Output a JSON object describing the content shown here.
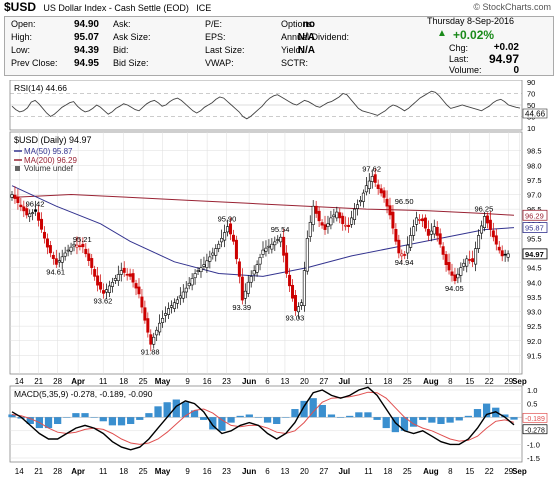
{
  "header": {
    "symbol": "$USD",
    "name": "US Dollar Index - Cash Settle (EOD)",
    "exchange": "ICE",
    "watermark": "© StockCharts.com",
    "date": "Thursday 8-Sep-2016",
    "change_pct": "+0.02%",
    "change_arrow": "▲",
    "quote": {
      "open_label": "Open:",
      "open": "94.90",
      "high_label": "High:",
      "high": "95.07",
      "low_label": "Low:",
      "low": "94.39",
      "prev_label": "Prev Close:",
      "prev": "94.95",
      "ask_label": "Ask:",
      "ask": "",
      "asksize_label": "Ask Size:",
      "asksize": "",
      "bid_label": "Bid:",
      "bid": "",
      "bidsize_label": "Bid Size:",
      "bidsize": "",
      "pe_label": "P/E:",
      "pe": "",
      "eps_label": "EPS:",
      "eps": "",
      "lastsize_label": "Last Size:",
      "lastsize": "",
      "vwap_label": "VWAP:",
      "vwap": "",
      "options_label": "Options:",
      "options": "no",
      "annualdiv_label": "Annual Dividend:",
      "annualdiv": "N/A",
      "yield_label": "Yield:",
      "yield": "N/A",
      "sctr_label": "SCTR:",
      "sctr": "",
      "chg_label": "Chg:",
      "chg": "+0.02",
      "last_label": "Last:",
      "last": "94.97",
      "volume_label": "Volume:",
      "volume": "0"
    }
  },
  "colors": {
    "up": "#1a8a1a",
    "candle_down": "#cc0000",
    "ma50": "#33338f",
    "ma200": "#992233",
    "macd": "#000000",
    "signal": "#e05050",
    "hist": "#3a8fcf",
    "grid": "#dddddd"
  },
  "chart_data": [
    {
      "type": "line",
      "title": "RSI(14) 44.66",
      "ylim": [
        10,
        90
      ],
      "yticks": [
        "90",
        "70",
        "50",
        "30",
        "10"
      ],
      "last_value": "44.66",
      "values": [
        48,
        42,
        38,
        40,
        45,
        55,
        58,
        52,
        44,
        36,
        30,
        34,
        40,
        46,
        50,
        54,
        56,
        48,
        42,
        38,
        40,
        44,
        50,
        46,
        40,
        34,
        38,
        44,
        48,
        52,
        50,
        46,
        42,
        40,
        46,
        52,
        56,
        58,
        54,
        48,
        50,
        56,
        60,
        62,
        58,
        52,
        46,
        40,
        36,
        40,
        46,
        50,
        54,
        60,
        64,
        62,
        56,
        50,
        44,
        38,
        30,
        26,
        30,
        36,
        42,
        48,
        56,
        62,
        66,
        68,
        64,
        60,
        56,
        52,
        50,
        54,
        58,
        56,
        52,
        48,
        46,
        50,
        54,
        56,
        60,
        64,
        70,
        68,
        60,
        52,
        44,
        40,
        38,
        36,
        34,
        32,
        36,
        40,
        46,
        50,
        48,
        44,
        40,
        44,
        50,
        56,
        62,
        66,
        70,
        74,
        72,
        66,
        58,
        50,
        44,
        46,
        48,
        50,
        48,
        46,
        44,
        42,
        40,
        44,
        48,
        54,
        58,
        60,
        56,
        50,
        48,
        46,
        44.66
      ]
    },
    {
      "type": "candlestick",
      "title": "$USD (Daily) 94.97",
      "ylim": [
        91,
        99
      ],
      "yticks": [
        "98.5",
        "98.0",
        "97.5",
        "97.0",
        "96.5",
        "96.0",
        "95.5",
        "95.0",
        "94.5",
        "94.0",
        "93.5",
        "93.0",
        "92.5",
        "92.0",
        "91.5"
      ],
      "legend": [
        "MA(50) 95.87",
        "MA(200) 96.29",
        "Volume undef"
      ],
      "price_labels": {
        "ma200": "96.29",
        "ma50": "95.87",
        "last": "94.97"
      },
      "annotations": [
        {
          "label": "96.42",
          "x": 8,
          "y": 96.42
        },
        {
          "label": "94.61",
          "x": 15,
          "y": 94.61
        },
        {
          "label": "95.21",
          "x": 24,
          "y": 95.21
        },
        {
          "label": "93.62",
          "x": 31,
          "y": 93.62
        },
        {
          "label": "91.88",
          "x": 47,
          "y": 91.88
        },
        {
          "label": "95.90",
          "x": 73,
          "y": 95.9
        },
        {
          "label": "93.39",
          "x": 78,
          "y": 93.39
        },
        {
          "label": "95.54",
          "x": 91,
          "y": 95.54
        },
        {
          "label": "93.03",
          "x": 96,
          "y": 93.03
        },
        {
          "label": "97.62",
          "x": 122,
          "y": 97.62
        },
        {
          "label": "96.50",
          "x": 133,
          "y": 96.5
        },
        {
          "label": "94.94",
          "x": 133,
          "y": 94.94
        },
        {
          "label": "94.05",
          "x": 150,
          "y": 94.05
        },
        {
          "label": "96.25",
          "x": 160,
          "y": 96.25
        }
      ],
      "ma50": [
        [
          0,
          97.3
        ],
        [
          15,
          96.6
        ],
        [
          30,
          96.0
        ],
        [
          40,
          95.4
        ],
        [
          55,
          94.7
        ],
        [
          70,
          94.3
        ],
        [
          85,
          94.2
        ],
        [
          100,
          94.5
        ],
        [
          115,
          94.9
        ],
        [
          130,
          95.2
        ],
        [
          145,
          95.5
        ],
        [
          160,
          95.8
        ],
        [
          170,
          95.87
        ]
      ],
      "ma200": [
        [
          0,
          96.9
        ],
        [
          20,
          97.0
        ],
        [
          40,
          96.9
        ],
        [
          60,
          96.8
        ],
        [
          80,
          96.7
        ],
        [
          100,
          96.6
        ],
        [
          120,
          96.5
        ],
        [
          140,
          96.45
        ],
        [
          160,
          96.35
        ],
        [
          170,
          96.29
        ]
      ],
      "close_path": [
        [
          0,
          97.0
        ],
        [
          5,
          96.3
        ],
        [
          8,
          96.42
        ],
        [
          12,
          95.2
        ],
        [
          15,
          94.61
        ],
        [
          18,
          95.0
        ],
        [
          21,
          95.3
        ],
        [
          24,
          95.21
        ],
        [
          27,
          94.5
        ],
        [
          29,
          93.9
        ],
        [
          31,
          93.62
        ],
        [
          34,
          94.0
        ],
        [
          37,
          94.4
        ],
        [
          40,
          94.2
        ],
        [
          43,
          93.6
        ],
        [
          45,
          92.7
        ],
        [
          47,
          91.88
        ],
        [
          50,
          92.6
        ],
        [
          53,
          93.1
        ],
        [
          56,
          93.4
        ],
        [
          59,
          93.8
        ],
        [
          62,
          94.3
        ],
        [
          65,
          94.6
        ],
        [
          68,
          95.0
        ],
        [
          70,
          95.3
        ],
        [
          73,
          95.9
        ],
        [
          75,
          95.4
        ],
        [
          77,
          94.2
        ],
        [
          78,
          93.39
        ],
        [
          80,
          94.0
        ],
        [
          83,
          94.6
        ],
        [
          85,
          95.1
        ],
        [
          88,
          95.3
        ],
        [
          91,
          95.54
        ],
        [
          93,
          94.3
        ],
        [
          96,
          93.03
        ],
        [
          98,
          93.3
        ],
        [
          100,
          95.5
        ],
        [
          102,
          96.6
        ],
        [
          104,
          96.1
        ],
        [
          106,
          95.8
        ],
        [
          108,
          96.2
        ],
        [
          110,
          96.4
        ],
        [
          112,
          96.0
        ],
        [
          114,
          95.9
        ],
        [
          116,
          96.5
        ],
        [
          118,
          96.8
        ],
        [
          120,
          97.3
        ],
        [
          122,
          97.62
        ],
        [
          124,
          97.2
        ],
        [
          126,
          96.9
        ],
        [
          128,
          96.3
        ],
        [
          130,
          95.4
        ],
        [
          131,
          95.0
        ],
        [
          133,
          94.94
        ],
        [
          135,
          95.6
        ],
        [
          137,
          96.2
        ],
        [
          139,
          96.1
        ],
        [
          141,
          95.6
        ],
        [
          143,
          95.9
        ],
        [
          145,
          95.3
        ],
        [
          147,
          94.6
        ],
        [
          150,
          94.05
        ],
        [
          152,
          94.5
        ],
        [
          154,
          94.8
        ],
        [
          156,
          94.7
        ],
        [
          158,
          95.6
        ],
        [
          160,
          96.25
        ],
        [
          162,
          95.8
        ],
        [
          164,
          95.3
        ],
        [
          166,
          94.9
        ],
        [
          168,
          94.97
        ]
      ]
    },
    {
      "type": "line",
      "title": "MACD(5,35,9) -0.278, -0.189, -0.090",
      "ylim": [
        -1.5,
        1.0
      ],
      "yticks": [
        "1.0",
        "0.5",
        "0.0",
        "-0.5",
        "-1.0",
        "-1.5"
      ],
      "price_labels": {
        "signal": "-0.189",
        "macd": "-0.278"
      },
      "series": [
        {
          "name": "MACD(5,35,9)",
          "values": [
            0.2,
            0.0,
            -0.3,
            -0.6,
            -0.8,
            -0.8,
            -0.6,
            -0.4,
            -0.3,
            -0.4,
            -0.6,
            -0.9,
            -1.1,
            -1.2,
            -1.1,
            -0.8,
            -0.4,
            0.0,
            0.4,
            0.6,
            0.5,
            0.2,
            -0.3,
            -0.6,
            -0.5,
            -0.3,
            -0.2,
            -0.3,
            -0.6,
            -0.8,
            -0.6,
            -0.2,
            0.4,
            0.9,
            1.0,
            0.8,
            0.7,
            0.8,
            1.0,
            1.1,
            0.8,
            0.3,
            -0.2,
            -0.5,
            -0.6,
            -0.5,
            -0.7,
            -0.9,
            -1.0,
            -1.0,
            -0.8,
            -0.4,
            0.1,
            0.2,
            0.0,
            -0.278
          ]
        },
        {
          "name": "Signal",
          "values": [
            0.1,
            0.05,
            -0.05,
            -0.2,
            -0.4,
            -0.55,
            -0.6,
            -0.55,
            -0.45,
            -0.4,
            -0.45,
            -0.6,
            -0.8,
            -0.95,
            -1.0,
            -0.95,
            -0.8,
            -0.55,
            -0.25,
            0.05,
            0.25,
            0.3,
            0.15,
            -0.1,
            -0.3,
            -0.35,
            -0.3,
            -0.3,
            -0.4,
            -0.55,
            -0.6,
            -0.5,
            -0.2,
            0.2,
            0.55,
            0.7,
            0.72,
            0.75,
            0.82,
            0.92,
            0.9,
            0.7,
            0.35,
            0.0,
            -0.25,
            -0.4,
            -0.5,
            -0.65,
            -0.8,
            -0.88,
            -0.85,
            -0.7,
            -0.4,
            -0.15,
            -0.1,
            -0.189
          ]
        },
        {
          "name": "Histogram",
          "values": [
            0.1,
            -0.05,
            -0.25,
            -0.4,
            -0.4,
            -0.25,
            0.0,
            0.15,
            0.15,
            0.0,
            -0.15,
            -0.3,
            -0.3,
            -0.25,
            -0.1,
            0.15,
            0.4,
            0.55,
            0.65,
            0.55,
            0.25,
            -0.1,
            -0.45,
            -0.5,
            -0.2,
            0.05,
            0.1,
            0.0,
            -0.2,
            -0.25,
            0.0,
            0.3,
            0.6,
            0.7,
            0.45,
            0.1,
            -0.02,
            0.05,
            0.18,
            0.18,
            -0.1,
            -0.4,
            -0.55,
            -0.5,
            -0.35,
            -0.1,
            -0.2,
            -0.25,
            -0.2,
            -0.12,
            0.05,
            0.3,
            0.5,
            0.35,
            0.1,
            -0.09
          ]
        }
      ]
    }
  ],
  "x_axis": {
    "ticks": [
      {
        "label": "14",
        "pos": 0.018
      },
      {
        "label": "21",
        "pos": 0.056
      },
      {
        "label": "28",
        "pos": 0.093
      },
      {
        "label": "Apr",
        "pos": 0.133,
        "bold": true
      },
      {
        "label": "11",
        "pos": 0.182
      },
      {
        "label": "18",
        "pos": 0.222
      },
      {
        "label": "25",
        "pos": 0.26
      },
      {
        "label": "May",
        "pos": 0.298,
        "bold": true
      },
      {
        "label": "9",
        "pos": 0.347
      },
      {
        "label": "16",
        "pos": 0.385
      },
      {
        "label": "23",
        "pos": 0.423
      },
      {
        "label": "Jun",
        "pos": 0.467,
        "bold": true
      },
      {
        "label": "6",
        "pos": 0.503
      },
      {
        "label": "13",
        "pos": 0.537
      },
      {
        "label": "20",
        "pos": 0.575
      },
      {
        "label": "27",
        "pos": 0.613
      },
      {
        "label": "Jul",
        "pos": 0.653,
        "bold": true
      },
      {
        "label": "11",
        "pos": 0.7
      },
      {
        "label": "18",
        "pos": 0.738
      },
      {
        "label": "25",
        "pos": 0.776
      },
      {
        "label": "Aug",
        "pos": 0.822,
        "bold": true
      },
      {
        "label": "8",
        "pos": 0.86
      },
      {
        "label": "15",
        "pos": 0.898
      },
      {
        "label": "22",
        "pos": 0.936
      },
      {
        "label": "29",
        "pos": 0.974
      },
      {
        "label": "Sep",
        "pos": 0.995,
        "bold": true
      }
    ]
  }
}
